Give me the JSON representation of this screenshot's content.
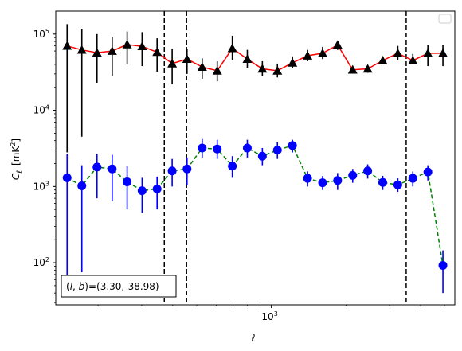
{
  "chart_data": {
    "type": "scatter",
    "xlabel": "ℓ",
    "ylabel_main": "C",
    "ylabel_sub": "ℓ",
    "ylabel_unit": "[mK",
    "ylabel_unit_sup": "2",
    "ylabel_unit_close": "]",
    "xscale": "log",
    "yscale": "log",
    "xlim": [
      135,
      5500
    ],
    "ylim": [
      28,
      200000
    ],
    "x_ticks": [
      {
        "value": 1000,
        "base": "10",
        "exp": "3"
      }
    ],
    "y_ticks": [
      {
        "value": 100,
        "base": "10",
        "exp": "2"
      },
      {
        "value": 1000,
        "base": "10",
        "exp": "3"
      },
      {
        "value": 10000,
        "base": "10",
        "exp": "4"
      },
      {
        "value": 100000,
        "base": "10",
        "exp": "5"
      }
    ],
    "legend_position": "upper right",
    "annotation": {
      "prefix": "(",
      "l": "l",
      "comma": ", ",
      "b": "b",
      "suffix": ")=(3.30,-38.98)"
    },
    "vlines": [
      370,
      455,
      3500
    ],
    "series": [
      {
        "marker": "triangle",
        "marker_color": "#000000",
        "line_color": "#ff0000",
        "line_style": "solid",
        "x": [
          150,
          172,
          198,
          228,
          262,
          301,
          346,
          398,
          457,
          526,
          605,
          696,
          800,
          920,
          1058,
          1217,
          1400,
          1610,
          1851,
          2129,
          2448,
          2815,
          3238,
          3723,
          4282,
          4924
        ],
        "y": [
          70000,
          62000,
          57000,
          60000,
          73000,
          69000,
          58000,
          41000,
          47000,
          37000,
          33000,
          65000,
          47000,
          35000,
          33000,
          42000,
          52000,
          56000,
          72000,
          34000,
          35000,
          45000,
          56000,
          45000,
          56000,
          56000
        ],
        "err_lo": [
          2800,
          4500,
          23000,
          28000,
          40000,
          38000,
          32000,
          22000,
          30000,
          26000,
          24000,
          46000,
          36000,
          28000,
          27000,
          36000,
          44000,
          47000,
          62000,
          31000,
          31000,
          40000,
          46000,
          40000,
          38000,
          38000
        ],
        "err_hi": [
          135000,
          115000,
          100000,
          92000,
          108000,
          106000,
          88000,
          64000,
          64000,
          48000,
          44000,
          95000,
          62000,
          44000,
          41000,
          51000,
          62000,
          68000,
          82000,
          37000,
          39000,
          50000,
          70000,
          55000,
          72000,
          72000
        ]
      },
      {
        "marker": "circle",
        "marker_color": "#0000ff",
        "line_color": "#008000",
        "line_style": "dashed",
        "x": [
          150,
          172,
          198,
          228,
          262,
          301,
          346,
          398,
          457,
          526,
          605,
          696,
          800,
          920,
          1058,
          1217,
          1400,
          1610,
          1851,
          2129,
          2448,
          2815,
          3238,
          3723,
          4282,
          4924
        ],
        "y": [
          1300,
          1020,
          1800,
          1700,
          1150,
          880,
          930,
          1600,
          1700,
          3200,
          3100,
          1850,
          3200,
          2500,
          3000,
          3450,
          1280,
          1120,
          1200,
          1400,
          1600,
          1130,
          1050,
          1280,
          1550,
          92
        ],
        "err_lo": [
          60,
          75,
          700,
          650,
          500,
          450,
          500,
          1000,
          1050,
          2400,
          2300,
          1300,
          2400,
          1900,
          2300,
          2800,
          1000,
          900,
          900,
          1120,
          1270,
          900,
          850,
          1000,
          1200,
          40
        ],
        "err_hi": [
          2700,
          1900,
          2700,
          2600,
          1850,
          1300,
          1350,
          2300,
          2400,
          4200,
          4100,
          2500,
          4100,
          3200,
          3800,
          4100,
          1580,
          1370,
          1500,
          1700,
          1950,
          1380,
          1280,
          1570,
          1900,
          145
        ]
      }
    ]
  }
}
